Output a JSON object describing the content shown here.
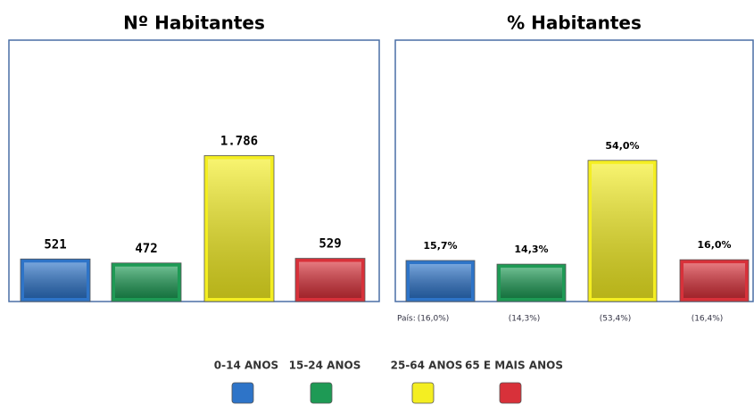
{
  "chart_data": [
    {
      "type": "bar",
      "title": "Nº Habitantes",
      "values": [
        521,
        472,
        1786,
        529
      ],
      "value_labels": [
        "521",
        "472",
        "1.786",
        "529"
      ],
      "ylim": [
        0,
        3200
      ]
    },
    {
      "type": "bar",
      "title": "% Habitantes",
      "values": [
        15.7,
        14.3,
        54.0,
        16.0
      ],
      "value_labels": [
        "15,7%",
        "14,3%",
        "54,0%",
        "16,0%"
      ],
      "ylim": [
        0,
        100
      ],
      "annotation": "País:",
      "country_values": [
        16.0,
        14.3,
        53.4,
        16.4
      ],
      "country_value_labels": [
        "(16,0%)",
        "(14,3%)",
        "(53,4%)",
        "(16,4%)"
      ]
    }
  ],
  "legend": {
    "items": [
      {
        "label": "0-14 ANOS",
        "color": "#2e74c8"
      },
      {
        "label": "15-24 ANOS",
        "color": "#1e9a55"
      },
      {
        "label": "25-64 ANOS",
        "color": "#f4ee22"
      },
      {
        "label": "65 E MAIS ANOS",
        "color": "#d8313a"
      }
    ]
  }
}
